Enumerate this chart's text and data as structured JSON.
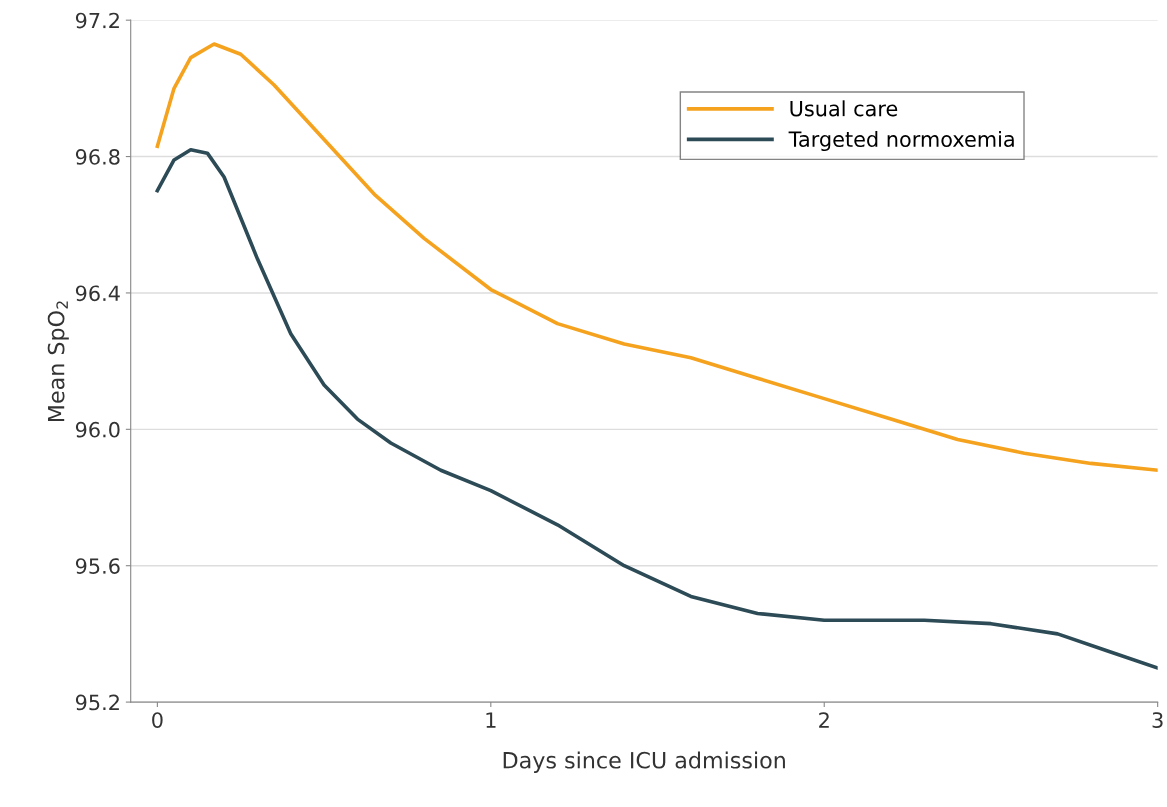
{
  "chart_data": {
    "type": "line",
    "xlabel": "Days since ICU admission",
    "ylabel": "Mean SpO$_{2}$",
    "xlim": [
      -0.08,
      3.0
    ],
    "ylim": [
      95.2,
      97.2
    ],
    "xticks": [
      0,
      1,
      2,
      3
    ],
    "yticks": [
      {
        "value": 95.2,
        "label": "95.2"
      },
      {
        "value": 95.6,
        "label": "95.6"
      },
      {
        "value": 96.0,
        "label": "96.0"
      },
      {
        "value": 96.4,
        "label": "96.4"
      },
      {
        "value": 96.8,
        "label": "96.8"
      },
      {
        "value": 97.2,
        "label": "97.2"
      }
    ],
    "grid": "y",
    "legend": "top right",
    "marker": "none",
    "line_style": "solid",
    "series": [
      {
        "name": "Usual care",
        "color": "#f5a21e",
        "x": [
          0,
          0.05,
          0.1,
          0.17,
          0.25,
          0.35,
          0.5,
          0.65,
          0.8,
          1.0,
          1.2,
          1.4,
          1.6,
          1.8,
          2.0,
          2.2,
          2.4,
          2.6,
          2.8,
          3.0
        ],
        "values": [
          96.83,
          97.0,
          97.09,
          97.13,
          97.1,
          97.01,
          96.85,
          96.69,
          96.56,
          96.41,
          96.31,
          96.25,
          96.21,
          96.15,
          96.09,
          96.03,
          95.97,
          95.93,
          95.9,
          95.88
        ]
      },
      {
        "name": "Targeted normoxemia",
        "color": "#2c4b57",
        "x": [
          0,
          0.05,
          0.1,
          0.15,
          0.2,
          0.3,
          0.4,
          0.5,
          0.6,
          0.7,
          0.85,
          1.0,
          1.2,
          1.4,
          1.6,
          1.8,
          2.0,
          2.3,
          2.5,
          2.7,
          2.85,
          3.0
        ],
        "values": [
          96.7,
          96.79,
          96.82,
          96.81,
          96.74,
          96.5,
          96.28,
          96.13,
          96.03,
          95.96,
          95.88,
          95.82,
          95.72,
          95.6,
          95.51,
          95.46,
          95.44,
          95.44,
          95.43,
          95.4,
          95.35,
          95.3
        ]
      }
    ]
  }
}
